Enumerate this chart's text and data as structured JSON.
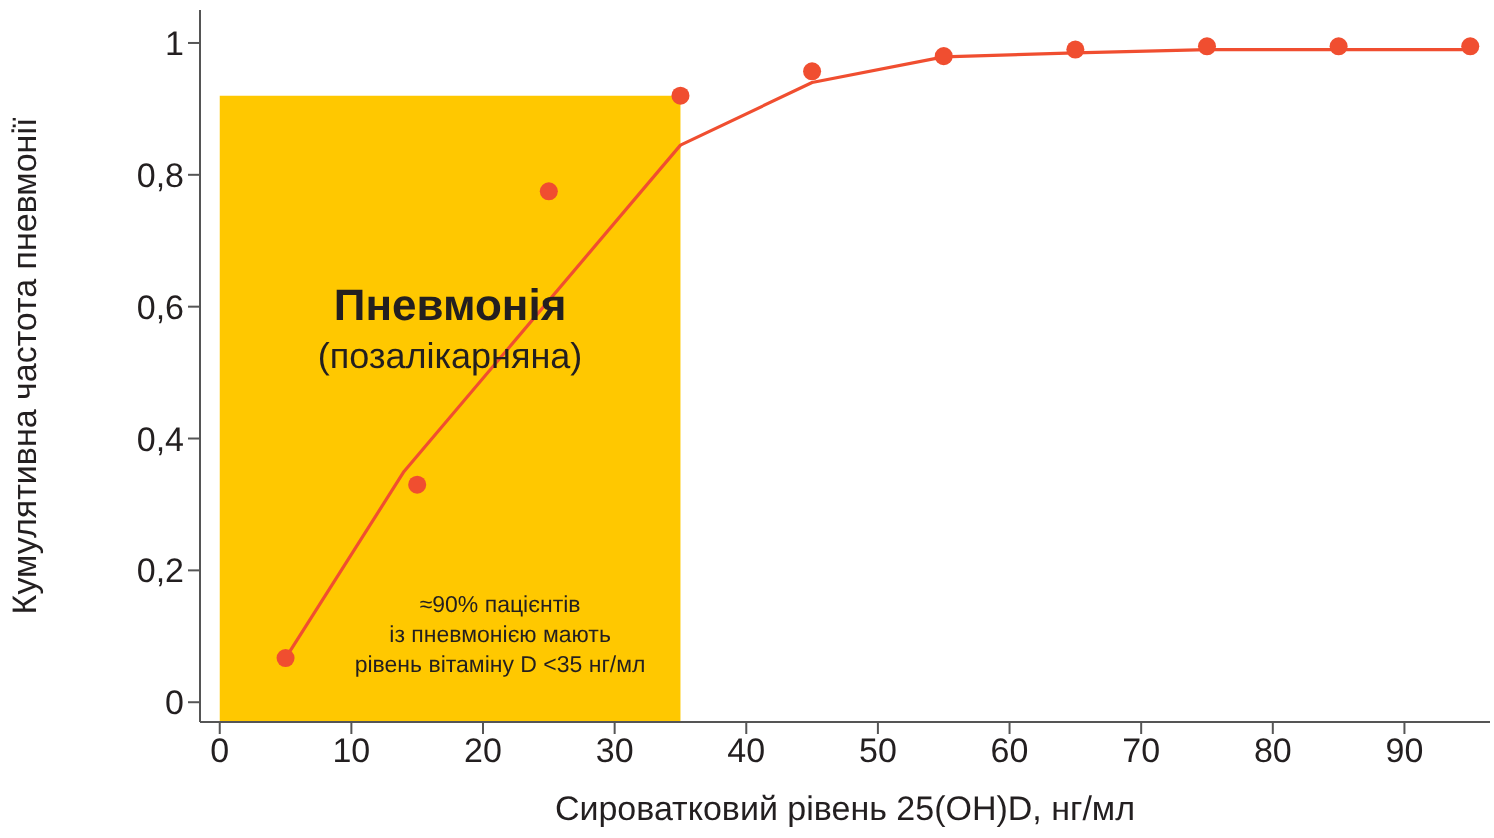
{
  "chart_data": {
    "type": "scatter",
    "xlabel": "Сироватковий рівень 25(OH)D, нг/мл",
    "ylabel": "Кумулятивна частота пневмонії",
    "xlim": [
      -1.5,
      96.5
    ],
    "xticks": [
      0,
      10,
      20,
      30,
      40,
      50,
      60,
      70,
      80,
      90
    ],
    "ylim": [
      -0.03,
      1.05
    ],
    "yticks": [
      0,
      {
        "value": 0.2,
        "label": "0,2"
      },
      {
        "value": 0.4,
        "label": "0,4"
      },
      {
        "value": 0.6,
        "label": "0,6"
      },
      {
        "value": 0.8,
        "label": "0,8"
      },
      1
    ],
    "series": [
      {
        "color": "#f04e30",
        "marker": "circle",
        "x": [
          5,
          15,
          25,
          35,
          45,
          55,
          65,
          75,
          85,
          95
        ],
        "values": [
          0.067,
          0.33,
          0.775,
          0.92,
          0.957,
          0.98,
          0.99,
          0.995,
          0.995,
          0.995
        ]
      },
      {
        "type": "line",
        "color": "#f04e30",
        "marker": "none",
        "line_style": "solid",
        "x": [
          5,
          14,
          35,
          45,
          55,
          65,
          75,
          85,
          95
        ],
        "values": [
          0.067,
          0.35,
          0.845,
          0.94,
          0.979,
          0.985,
          0.99,
          0.99,
          0.99
        ]
      }
    ],
    "bands": [
      {
        "axis": "x",
        "from": 0,
        "to": 35,
        "color": "#ffc800"
      }
    ],
    "annotations": [
      "Пневмонія",
      "(позалікарняна)",
      "≈90% пацієнтів\nіз пневмонією мають\nрівень вітаміну D <35 нг/мл"
    ]
  }
}
